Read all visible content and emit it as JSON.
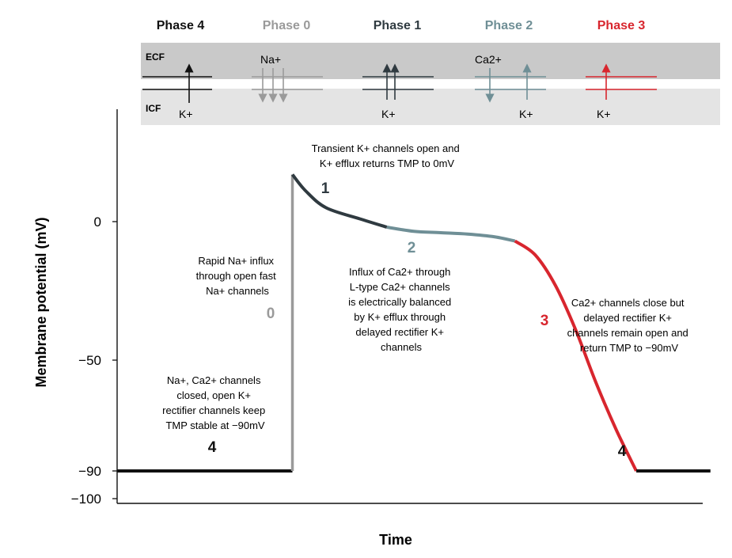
{
  "colors": {
    "phase4": "#111111",
    "phase0": "#9a9a9a",
    "phase1": "#2f3a40",
    "phase2": "#6f8f96",
    "phase3": "#d8262e",
    "ecf_band": "#c9c9c9",
    "icf_band": "#e4e4e4"
  },
  "membrane": {
    "ecf_label": "ECF",
    "icf_label": "ICF",
    "phases": [
      {
        "title": "Phase 4",
        "color": "#111111",
        "ion_top": "",
        "ion_bottom": "K+"
      },
      {
        "title": "Phase 0",
        "color": "#9a9a9a",
        "ion_top": "Na+",
        "ion_bottom": ""
      },
      {
        "title": "Phase 1",
        "color": "#2f3a40",
        "ion_top": "",
        "ion_bottom": "K+"
      },
      {
        "title": "Phase 2",
        "color": "#6f8f96",
        "ion_top": "Ca2+",
        "ion_bottom": "K+"
      },
      {
        "title": "Phase 3",
        "color": "#d8262e",
        "ion_top": "",
        "ion_bottom": "K+"
      }
    ]
  },
  "chart_data": {
    "type": "line",
    "xlabel": "Time",
    "ylabel": "Membrane potential (mV)",
    "ylim": [
      -100,
      20
    ],
    "yticks": [
      "0",
      "−50",
      "−90",
      "−100"
    ],
    "segments": [
      {
        "phase": "4",
        "color": "#111111",
        "points": [
          [
            0,
            -90
          ],
          [
            0.26,
            -90
          ]
        ]
      },
      {
        "phase": "0",
        "color": "#9a9a9a",
        "points": [
          [
            0.26,
            -90
          ],
          [
            0.26,
            17
          ]
        ]
      },
      {
        "phase": "1",
        "color": "#2f3a40",
        "points": [
          [
            0.26,
            17
          ],
          [
            0.28,
            11
          ],
          [
            0.31,
            5
          ],
          [
            0.36,
            1
          ],
          [
            0.4,
            -2
          ]
        ]
      },
      {
        "phase": "2",
        "color": "#6f8f96",
        "points": [
          [
            0.4,
            -2
          ],
          [
            0.44,
            -3.5
          ],
          [
            0.48,
            -4
          ],
          [
            0.52,
            -4.5
          ],
          [
            0.56,
            -5.5
          ],
          [
            0.59,
            -7
          ]
        ]
      },
      {
        "phase": "3",
        "color": "#d8262e",
        "points": [
          [
            0.59,
            -7
          ],
          [
            0.62,
            -12
          ],
          [
            0.65,
            -23
          ],
          [
            0.68,
            -39
          ],
          [
            0.71,
            -58
          ],
          [
            0.74,
            -75
          ],
          [
            0.77,
            -90
          ]
        ]
      },
      {
        "phase": "4",
        "color": "#111111",
        "points": [
          [
            0.77,
            -90
          ],
          [
            0.88,
            -90
          ]
        ]
      }
    ],
    "phase_numbers": [
      "4",
      "0",
      "1",
      "2",
      "3",
      "4"
    ],
    "annotations": {
      "phase4": [
        "Na+, Ca2+ channels",
        "closed, open K+",
        "rectifier channels keep",
        "TMP stable at −90mV"
      ],
      "phase0": [
        "Rapid Na+ influx",
        "through open fast",
        "Na+ channels"
      ],
      "phase1": [
        "Transient K+ channels open and",
        "K+ efflux returns TMP to 0mV"
      ],
      "phase2": [
        "Influx of Ca2+ through",
        "L-type Ca2+ channels",
        "is electrically balanced",
        "by K+ efflux through",
        "delayed rectifier K+",
        "channels"
      ],
      "phase3": [
        "Ca2+ channels close but",
        "delayed rectifier K+",
        "channels remain open and",
        "return TMP to −90mV"
      ]
    }
  }
}
